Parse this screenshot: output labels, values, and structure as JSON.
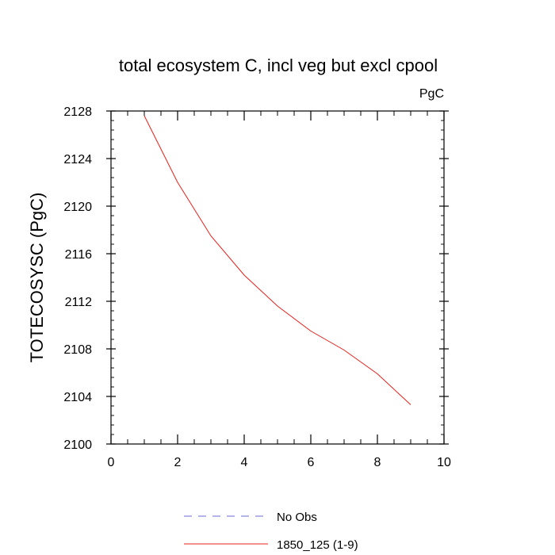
{
  "chart_data": {
    "type": "line",
    "title": "total ecosystem C, incl veg but excl cpool",
    "units_label": "PgC",
    "ylabel": "TOTECOSYSC  (PgC)",
    "xlabel": "",
    "xlim": [
      0,
      10
    ],
    "ylim": [
      2100,
      2128
    ],
    "xticks": [
      0,
      2,
      4,
      6,
      8,
      10
    ],
    "yticks": [
      2100,
      2104,
      2108,
      2112,
      2116,
      2120,
      2124,
      2128
    ],
    "grid": false,
    "legend_placement": "bottom",
    "series": [
      {
        "name": "No Obs",
        "color": "#6b6bd6",
        "dash": "dashed",
        "x": [],
        "y": []
      },
      {
        "name": "1850_125 (1-9)",
        "color": "#e8201a",
        "dash": "solid",
        "x": [
          1,
          2,
          3,
          4,
          5,
          6,
          7,
          8,
          9
        ],
        "y": [
          2127.6,
          2122.0,
          2117.5,
          2114.2,
          2111.6,
          2109.5,
          2107.9,
          2105.9,
          2103.3
        ]
      }
    ]
  }
}
